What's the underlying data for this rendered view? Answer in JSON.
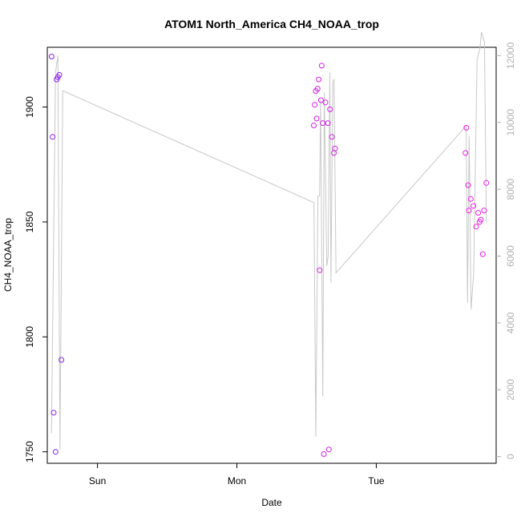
{
  "chart_data": {
    "type": "scatter",
    "title": "ATOM1 North_America CH4_NOAA_trop",
    "xlabel": "Date",
    "ylabel": "CH4_NOAA_trop",
    "x_unit": "days",
    "xlim": [
      -0.36,
      2.86
    ],
    "ylim": [
      1745,
      1926
    ],
    "x_ticks": [
      {
        "value": 0,
        "label": "Sun"
      },
      {
        "value": 1,
        "label": "Mon"
      },
      {
        "value": 2,
        "label": "Tue"
      }
    ],
    "y_ticks": [
      1750,
      1800,
      1850,
      1900
    ],
    "y2_ticks": [
      0,
      2000,
      4000,
      6000,
      8000,
      10000,
      12000
    ],
    "y2lim": [
      -200,
      12250
    ],
    "grid": false,
    "colors": {
      "axis": "#000000",
      "right_axis": "#b0b0b0",
      "altitude_line": "#c8c8c8",
      "point_low": "#7d1de8",
      "point_high": "#ee1ee8"
    },
    "series": [
      {
        "kind": "scatter",
        "color_scale": "points colored from purple (earlier) to magenta (later)",
        "points": [
          {
            "x": -0.329,
            "y": 1922,
            "color": "#8a1fe7"
          },
          {
            "x": -0.322,
            "y": 1887,
            "color": "#8a1fe7"
          },
          {
            "x": -0.314,
            "y": 1767,
            "color": "#8a1fe7"
          },
          {
            "x": -0.301,
            "y": 1750,
            "color": "#8a1fe7"
          },
          {
            "x": -0.293,
            "y": 1912,
            "color": "#8a1fe7"
          },
          {
            "x": -0.284,
            "y": 1913,
            "color": "#8a1fe7"
          },
          {
            "x": -0.274,
            "y": 1914,
            "color": "#8a1fe7"
          },
          {
            "x": -0.259,
            "y": 1790,
            "color": "#8a1fe7"
          },
          {
            "x": 1.552,
            "y": 1892,
            "color": "#d51ee8"
          },
          {
            "x": 1.559,
            "y": 1901,
            "color": "#d51ee8"
          },
          {
            "x": 1.566,
            "y": 1907,
            "color": "#d51ee8"
          },
          {
            "x": 1.572,
            "y": 1895,
            "color": "#d51ee8"
          },
          {
            "x": 1.579,
            "y": 1908,
            "color": "#d51ee8"
          },
          {
            "x": 1.587,
            "y": 1912,
            "color": "#d51ee8"
          },
          {
            "x": 1.594,
            "y": 1829,
            "color": "#d51ee8"
          },
          {
            "x": 1.603,
            "y": 1903,
            "color": "#d51ee8"
          },
          {
            "x": 1.609,
            "y": 1918,
            "color": "#d51ee8"
          },
          {
            "x": 1.616,
            "y": 1893,
            "color": "#d51ee8"
          },
          {
            "x": 1.624,
            "y": 1749,
            "color": "#d51ee8"
          },
          {
            "x": 1.635,
            "y": 1902,
            "color": "#d51ee8"
          },
          {
            "x": 1.653,
            "y": 1893,
            "color": "#d51ee8"
          },
          {
            "x": 1.66,
            "y": 1751,
            "color": "#d51ee8"
          },
          {
            "x": 1.668,
            "y": 1899,
            "color": "#d51ee8"
          },
          {
            "x": 1.681,
            "y": 1887,
            "color": "#d51ee8"
          },
          {
            "x": 1.696,
            "y": 1880,
            "color": "#d51ee8"
          },
          {
            "x": 1.704,
            "y": 1882,
            "color": "#d51ee8"
          },
          {
            "x": 2.64,
            "y": 1880,
            "color": "#ee1ee8"
          },
          {
            "x": 2.646,
            "y": 1891,
            "color": "#ee1ee8"
          },
          {
            "x": 2.659,
            "y": 1866,
            "color": "#ee1ee8"
          },
          {
            "x": 2.665,
            "y": 1855,
            "color": "#ee1ee8"
          },
          {
            "x": 2.678,
            "y": 1860,
            "color": "#ee1ee8"
          },
          {
            "x": 2.697,
            "y": 1857,
            "color": "#ee1ee8"
          },
          {
            "x": 2.716,
            "y": 1848,
            "color": "#ee1ee8"
          },
          {
            "x": 2.731,
            "y": 1854,
            "color": "#ee1ee8"
          },
          {
            "x": 2.741,
            "y": 1850,
            "color": "#ee1ee8"
          },
          {
            "x": 2.75,
            "y": 1851,
            "color": "#ee1ee8"
          },
          {
            "x": 2.764,
            "y": 1836,
            "color": "#ee1ee8"
          },
          {
            "x": 2.773,
            "y": 1855,
            "color": "#ee1ee8"
          },
          {
            "x": 2.789,
            "y": 1867,
            "color": "#ee1ee8"
          }
        ]
      },
      {
        "kind": "line",
        "axis": "right",
        "points": [
          {
            "x": -0.33,
            "y2": 700
          },
          {
            "x": -0.301,
            "y2": 11500
          },
          {
            "x": -0.284,
            "y2": 12000
          },
          {
            "x": -0.269,
            "y2": 200
          },
          {
            "x": -0.249,
            "y2": 10950
          },
          {
            "x": 1.553,
            "y2": 7600
          },
          {
            "x": 1.566,
            "y2": 600
          },
          {
            "x": 1.582,
            "y2": 7800
          },
          {
            "x": 1.593,
            "y2": 7800
          },
          {
            "x": 1.601,
            "y2": 10700
          },
          {
            "x": 1.616,
            "y2": 1800
          },
          {
            "x": 1.627,
            "y2": 10900
          },
          {
            "x": 1.645,
            "y2": 5700
          },
          {
            "x": 1.655,
            "y2": 6000
          },
          {
            "x": 1.667,
            "y2": 11500
          },
          {
            "x": 1.675,
            "y2": 5200
          },
          {
            "x": 1.688,
            "y2": 11200
          },
          {
            "x": 1.697,
            "y2": 11300
          },
          {
            "x": 1.711,
            "y2": 5500
          },
          {
            "x": 2.645,
            "y2": 9900
          },
          {
            "x": 2.655,
            "y2": 4600
          },
          {
            "x": 2.666,
            "y2": 9600
          },
          {
            "x": 2.68,
            "y2": 4400
          },
          {
            "x": 2.699,
            "y2": 5500
          },
          {
            "x": 2.723,
            "y2": 11900
          },
          {
            "x": 2.743,
            "y2": 12200
          },
          {
            "x": 2.755,
            "y2": 12700
          },
          {
            "x": 2.776,
            "y2": 12400
          },
          {
            "x": 2.79,
            "y2": 7000
          }
        ]
      }
    ]
  }
}
